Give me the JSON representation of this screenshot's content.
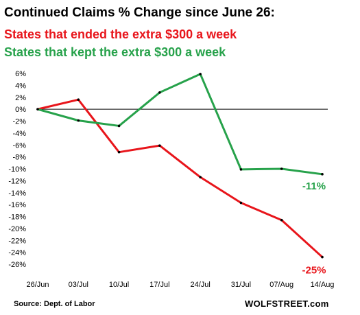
{
  "chart_data": {
    "type": "line",
    "title": "Continued Claims % Change since June 26:",
    "categories": [
      "26/Jun",
      "03/Jul",
      "10/Jul",
      "17/Jul",
      "24/Jul",
      "31/Jul",
      "07/Aug",
      "14/Aug"
    ],
    "series": [
      {
        "name": "States that ended the extra $300 a week",
        "color": "#e8151b",
        "values": [
          0,
          1.6,
          -7.2,
          -6.1,
          -11.4,
          -15.7,
          -18.6,
          -24.8
        ],
        "end_label": "-25%"
      },
      {
        "name": "States that kept the extra $300 a week",
        "color": "#27a24b",
        "values": [
          0,
          -1.9,
          -2.8,
          2.8,
          5.9,
          -10.1,
          -10.0,
          -10.9
        ],
        "end_label": "-11%"
      }
    ],
    "yticks": [
      6,
      4,
      2,
      0,
      -2,
      -4,
      -6,
      -8,
      -10,
      -12,
      -14,
      -16,
      -18,
      -20,
      -22,
      -24,
      -26
    ],
    "ylim": [
      -26,
      6
    ],
    "source": "Source: Dept. of Labor",
    "brand": "WOLFSTREET.com"
  }
}
